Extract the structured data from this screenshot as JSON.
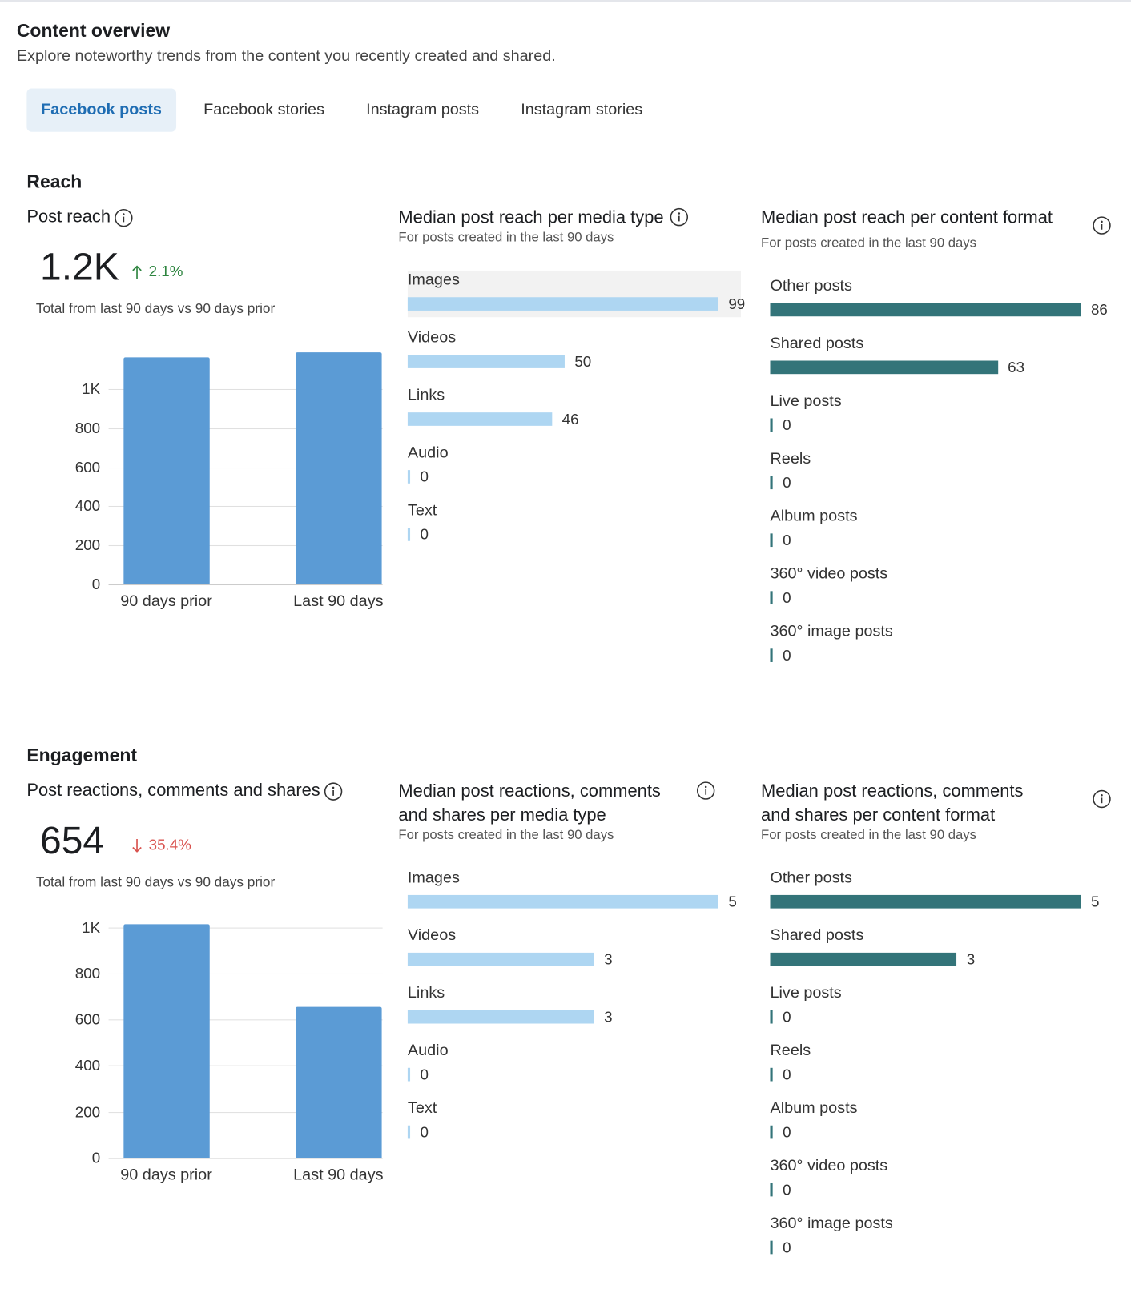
{
  "header": {
    "title": "Content overview",
    "subtitle": "Explore noteworthy trends from the content you recently created and shared."
  },
  "tabs": [
    {
      "label": "Facebook posts",
      "active": true
    },
    {
      "label": "Facebook stories",
      "active": false
    },
    {
      "label": "Instagram posts",
      "active": false
    },
    {
      "label": "Instagram stories",
      "active": false
    }
  ],
  "sections": [
    {
      "title": "Reach",
      "kpi": {
        "title": "Post reach",
        "value": "1.2K",
        "change": "2.1%",
        "direction": "up",
        "caption": "Total from last 90 days vs 90 days prior"
      },
      "chart_data": {
        "type": "bar",
        "categories": [
          "90 days prior",
          "Last 90 days"
        ],
        "values": [
          1163,
          1188
        ],
        "color": "#5b9bd5",
        "ylim": [
          0,
          1200
        ],
        "yticks": [
          0,
          200,
          400,
          600,
          800,
          {
            "value": 1000,
            "label": "1K"
          }
        ],
        "grid": true
      },
      "media_type": {
        "title": "Median post reach per media type",
        "subtitle": "For posts created in the last 90 days",
        "chart_data": {
          "type": "hbar",
          "categories": [
            "Images",
            "Videos",
            "Links",
            "Audio",
            "Text"
          ],
          "values": [
            99,
            50,
            46,
            0,
            0
          ],
          "color": "#aed6f2"
        }
      },
      "content_format": {
        "title": "Median post reach per content format",
        "subtitle": "For posts created in the last 90 days",
        "chart_data": {
          "type": "hbar",
          "categories": [
            "Other posts",
            "Shared posts",
            "Live posts",
            "Reels",
            "Album posts",
            "360° video posts",
            "360° image posts"
          ],
          "values": [
            86,
            63,
            0,
            0,
            0,
            0,
            0
          ],
          "color": "#337479"
        }
      }
    },
    {
      "title": "Engagement",
      "kpi": {
        "title": "Post reactions, comments and shares",
        "value": "654",
        "change": "35.4%",
        "direction": "down",
        "caption": "Total from last 90 days vs 90 days prior"
      },
      "chart_data": {
        "type": "bar",
        "categories": [
          "90 days prior",
          "Last 90 days"
        ],
        "values": [
          1012,
          654
        ],
        "color": "#5b9bd5",
        "ylim": [
          0,
          1020
        ],
        "yticks": [
          0,
          200,
          400,
          600,
          800,
          {
            "value": 1000,
            "label": "1K"
          }
        ],
        "grid": true
      },
      "media_type": {
        "title": "Median post reactions, comments and shares per media type",
        "subtitle": "For posts created in the last 90 days",
        "chart_data": {
          "type": "hbar",
          "categories": [
            "Images",
            "Videos",
            "Links",
            "Audio",
            "Text"
          ],
          "values": [
            5,
            3,
            3,
            0,
            0
          ],
          "color": "#aed6f2"
        }
      },
      "content_format": {
        "title": "Median post reactions, comments and shares per content format",
        "subtitle": "For posts created in the last 90 days",
        "chart_data": {
          "type": "hbar",
          "categories": [
            "Other posts",
            "Shared posts",
            "Live posts",
            "Reels",
            "Album posts",
            "360° video posts",
            "360° image posts"
          ],
          "values": [
            5,
            3,
            0,
            0,
            0,
            0,
            0
          ],
          "color": "#337479"
        }
      }
    }
  ]
}
